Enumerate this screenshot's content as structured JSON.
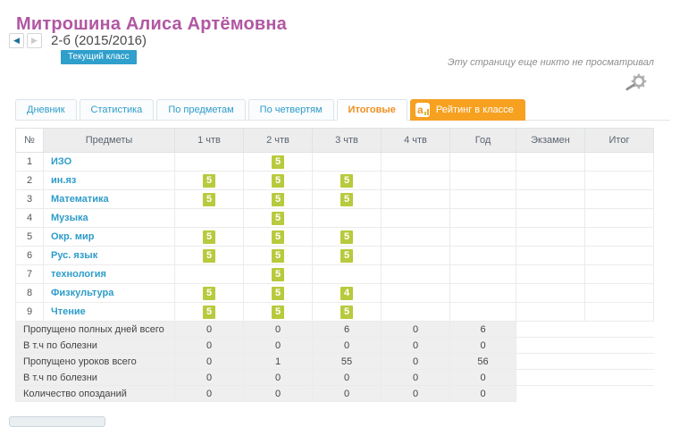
{
  "page": {
    "title": "Митрошина Алиса Артёмовна",
    "class_label": "2-б (2015/2016)",
    "class_badge": "Текущий класс",
    "view_note": "Эту страницу еще никто не просматривал"
  },
  "nav": {
    "prev_arrow": "◀",
    "next_arrow": "▶"
  },
  "tabs": [
    {
      "label": "Дневник"
    },
    {
      "label": "Статистика"
    },
    {
      "label": "По предметам"
    },
    {
      "label": "По четвертям"
    },
    {
      "label": "Итоговые"
    },
    {
      "label": "Рейтинг в классе",
      "logo_text": "a"
    }
  ],
  "colors": {
    "title_purple": "#b157a3",
    "link_blue": "#2e9cc9",
    "badge_blue": "#2f9fcc",
    "tab_active_orange": "#ef8f1f",
    "brand_orange": "#f7a120",
    "grade_green": "#b8ca3d"
  },
  "grades_table": {
    "headers": [
      "№",
      "Предметы",
      "1 чтв",
      "2 чтв",
      "3 чтв",
      "4 чтв",
      "Год",
      "Экзамен",
      "Итог"
    ],
    "rows": [
      {
        "num": "1",
        "subject": "ИЗО",
        "marks": [
          "",
          "5",
          "",
          "",
          "",
          "",
          ""
        ]
      },
      {
        "num": "2",
        "subject": "ин.яз",
        "marks": [
          "5",
          "5",
          "5",
          "",
          "",
          "",
          ""
        ]
      },
      {
        "num": "3",
        "subject": "Математика",
        "marks": [
          "5",
          "5",
          "5",
          "",
          "",
          "",
          ""
        ]
      },
      {
        "num": "4",
        "subject": "Музыка",
        "marks": [
          "",
          "5",
          "",
          "",
          "",
          "",
          ""
        ]
      },
      {
        "num": "5",
        "subject": "Окр. мир",
        "marks": [
          "5",
          "5",
          "5",
          "",
          "",
          "",
          ""
        ]
      },
      {
        "num": "6",
        "subject": "Рус. язык",
        "marks": [
          "5",
          "5",
          "5",
          "",
          "",
          "",
          ""
        ]
      },
      {
        "num": "7",
        "subject": "технология",
        "marks": [
          "",
          "5",
          "",
          "",
          "",
          "",
          ""
        ]
      },
      {
        "num": "8",
        "subject": "Физкультура",
        "marks": [
          "5",
          "5",
          "4",
          "",
          "",
          "",
          ""
        ]
      },
      {
        "num": "9",
        "subject": "Чтение",
        "marks": [
          "5",
          "5",
          "5",
          "",
          "",
          "",
          ""
        ]
      }
    ],
    "summary_rows": [
      {
        "label": "Пропущено полных дней всего",
        "values": [
          "0",
          "0",
          "6",
          "0",
          "6"
        ]
      },
      {
        "label": "В т.ч по болезни",
        "values": [
          "0",
          "0",
          "0",
          "0",
          "0"
        ]
      },
      {
        "label": "Пропущено уроков всего",
        "values": [
          "0",
          "1",
          "55",
          "0",
          "56"
        ]
      },
      {
        "label": "В т.ч по болезни",
        "values": [
          "0",
          "0",
          "0",
          "0",
          "0"
        ]
      },
      {
        "label": "Количество опозданий",
        "values": [
          "0",
          "0",
          "0",
          "0",
          "0"
        ]
      }
    ]
  }
}
